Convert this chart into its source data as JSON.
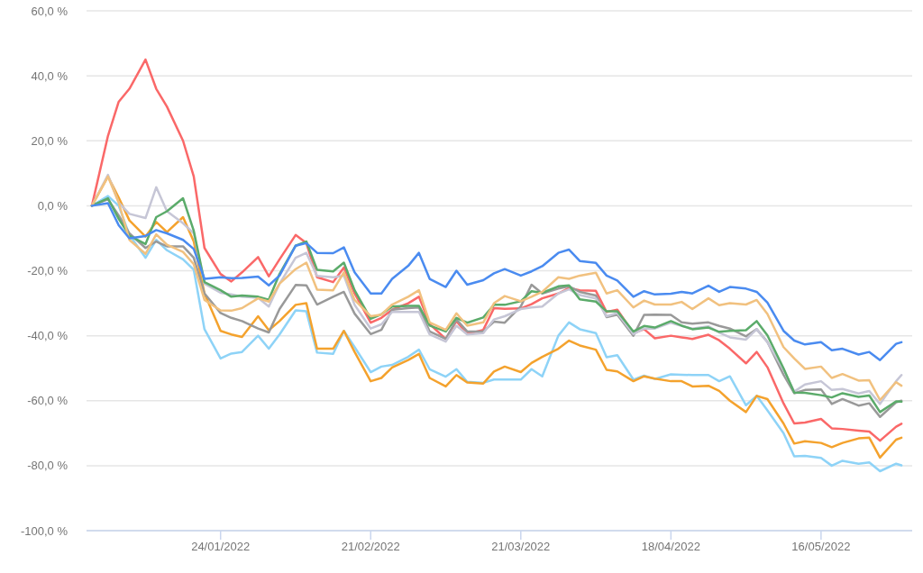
{
  "chart_data": {
    "type": "line",
    "x": [
      "2021-12-31",
      "2022-01-03",
      "2022-01-05",
      "2022-01-07",
      "2022-01-10",
      "2022-01-12",
      "2022-01-14",
      "2022-01-17",
      "2022-01-19",
      "2022-01-21",
      "2022-01-24",
      "2022-01-26",
      "2022-01-28",
      "2022-01-31",
      "2022-02-02",
      "2022-02-04",
      "2022-02-07",
      "2022-02-09",
      "2022-02-11",
      "2022-02-14",
      "2022-02-16",
      "2022-02-18",
      "2022-02-21",
      "2022-02-23",
      "2022-02-25",
      "2022-02-28",
      "2022-03-02",
      "2022-03-04",
      "2022-03-07",
      "2022-03-09",
      "2022-03-11",
      "2022-03-14",
      "2022-03-16",
      "2022-03-18",
      "2022-03-21",
      "2022-03-23",
      "2022-03-25",
      "2022-03-28",
      "2022-03-30",
      "2022-04-01",
      "2022-04-04",
      "2022-04-06",
      "2022-04-08",
      "2022-04-11",
      "2022-04-13",
      "2022-04-15",
      "2022-04-18",
      "2022-04-20",
      "2022-04-22",
      "2022-04-25",
      "2022-04-27",
      "2022-04-29",
      "2022-05-02",
      "2022-05-04",
      "2022-05-06",
      "2022-05-09",
      "2022-05-11",
      "2022-05-13",
      "2022-05-16",
      "2022-05-18",
      "2022-05-20",
      "2022-05-23",
      "2022-05-25",
      "2022-05-27",
      "2022-05-30",
      "2022-05-31"
    ],
    "series": [
      {
        "color": "#8ed3f7",
        "values": [
          0,
          3,
          0,
          -9,
          -16,
          -10.5,
          -13.7,
          -16.5,
          -19.7,
          -38,
          -47,
          -45.5,
          -45,
          -40,
          -44,
          -39.6,
          -32.2,
          -32.5,
          -45.2,
          -45.6,
          -38.5,
          -43.5,
          -51.2,
          -49.5,
          -49,
          -46.5,
          -44.3,
          -50.3,
          -52.6,
          -50.3,
          -54.2,
          -54.5,
          -53.5,
          -53.5,
          -53.5,
          -50.3,
          -52.5,
          -40,
          -35.9,
          -38,
          -39.2,
          -46.6,
          -46,
          -53.5,
          -52.3,
          -53.3,
          -51.9,
          -52,
          -52.1,
          -52.1,
          -54,
          -52.5,
          -61.4,
          -58.5,
          -63,
          -70,
          -77.1,
          -77,
          -77.6,
          -80,
          -78.5,
          -79.4,
          -79,
          -81.7,
          -79.4,
          -79.9
        ]
      },
      {
        "color": "#f4a22d",
        "values": [
          0,
          9,
          2.5,
          -4.5,
          -9.5,
          -5,
          -8.1,
          -3.5,
          -11,
          -27,
          -38.5,
          -39.6,
          -40.4,
          -34,
          -38.3,
          -35.5,
          -30.5,
          -30,
          -44,
          -44,
          -38.5,
          -45,
          -54,
          -53,
          -49.8,
          -47.5,
          -45.6,
          -53,
          -55.6,
          -52.1,
          -54.4,
          -54.7,
          -51,
          -49.5,
          -51.2,
          -48.4,
          -46.5,
          -44,
          -41.5,
          -43,
          -44.3,
          -50.5,
          -51,
          -54,
          -52.5,
          -53.2,
          -54,
          -54,
          -55.6,
          -55.4,
          -57,
          -60,
          -63.5,
          -58.5,
          -59.5,
          -67,
          -73.2,
          -72.5,
          -73,
          -74.3,
          -73,
          -71.6,
          -71.4,
          -77.5,
          -72,
          -71.4
        ]
      },
      {
        "color": "#fa6868",
        "values": [
          0,
          21.5,
          32,
          36,
          45,
          36,
          30.5,
          20,
          9,
          -13,
          -21,
          -23.3,
          -20.5,
          -15.8,
          -21.7,
          -16.5,
          -9,
          -11.5,
          -22,
          -23.5,
          -19,
          -27,
          -36,
          -34.5,
          -32,
          -30,
          -28,
          -36.4,
          -41,
          -35.5,
          -39.5,
          -38.2,
          -31.5,
          -31.7,
          -31.6,
          -30.3,
          -28.5,
          -27,
          -25.3,
          -26,
          -26.2,
          -32.7,
          -32,
          -39.2,
          -38,
          -40.8,
          -40,
          -40.5,
          -41,
          -39.7,
          -41.4,
          -44,
          -48.5,
          -45,
          -49.7,
          -60.8,
          -67,
          -66.7,
          -65.6,
          -68.5,
          -68.7,
          -69.2,
          -69.5,
          -72.3,
          -68,
          -67.1
        ]
      },
      {
        "color": "#999999",
        "values": [
          0,
          2,
          -3,
          -8.5,
          -13,
          -11,
          -12.5,
          -12.5,
          -16,
          -27,
          -33,
          -34.5,
          -35.5,
          -37.8,
          -39,
          -31.8,
          -24.4,
          -24.5,
          -30.4,
          -28,
          -26.5,
          -33.2,
          -39.5,
          -38.2,
          -32,
          -31.5,
          -31.3,
          -38.7,
          -41,
          -35,
          -38.7,
          -38.7,
          -35.7,
          -36,
          -31,
          -24.3,
          -27,
          -25.5,
          -24.8,
          -26.5,
          -27.6,
          -34.3,
          -33.5,
          -40,
          -33.6,
          -33.5,
          -33.6,
          -35.9,
          -36.3,
          -35.9,
          -37,
          -37.8,
          -40.2,
          -38,
          -41.9,
          -52,
          -57.7,
          -56.7,
          -56.5,
          -61,
          -59.5,
          -61.5,
          -60.8,
          -65,
          -60.5,
          -60
        ]
      },
      {
        "color": "#c6c6d6",
        "values": [
          0,
          9.5,
          1,
          -2.5,
          -3.8,
          5.7,
          -1.7,
          -5.4,
          -8.5,
          -24,
          -26.8,
          -27.3,
          -28,
          -28.3,
          -31,
          -24,
          -16,
          -14.5,
          -21.6,
          -22,
          -21.5,
          -30.5,
          -37.8,
          -36.5,
          -32.7,
          -32.7,
          -32.7,
          -39.6,
          -41.8,
          -36.9,
          -39.6,
          -39.2,
          -35,
          -34,
          -31.8,
          -31.3,
          -31,
          -27,
          -25.7,
          -27.5,
          -28.5,
          -34,
          -33,
          -39.5,
          -37.8,
          -37.8,
          -36,
          -37,
          -37.8,
          -37.1,
          -39,
          -40.5,
          -41.2,
          -38,
          -42,
          -50.5,
          -57.2,
          -55,
          -54,
          -56.7,
          -56.4,
          -57.8,
          -57,
          -61,
          -54,
          -52.1
        ]
      },
      {
        "color": "#5bab6a",
        "values": [
          0,
          2.3,
          -4,
          -9.2,
          -11.8,
          -3.5,
          -1.7,
          2.3,
          -7.7,
          -23.5,
          -26,
          -28,
          -27.6,
          -28,
          -28.9,
          -21,
          -12.3,
          -11,
          -19.7,
          -20.2,
          -17.5,
          -26,
          -34.8,
          -33.4,
          -31,
          -30.8,
          -30.8,
          -36.9,
          -38.7,
          -34.5,
          -36,
          -34.4,
          -30.5,
          -30.5,
          -29.4,
          -26.3,
          -26.8,
          -24.8,
          -24.5,
          -28.8,
          -29.5,
          -32.5,
          -32.5,
          -38.7,
          -37,
          -37.5,
          -35.5,
          -36.9,
          -38,
          -37.5,
          -38.8,
          -38.5,
          -38.3,
          -35.5,
          -39.9,
          -50,
          -57.5,
          -57.6,
          -58.3,
          -59,
          -57.7,
          -58.8,
          -58.4,
          -63.5,
          -60.2,
          -60.3
        ]
      },
      {
        "color": "#f1c17f",
        "values": [
          0,
          9,
          1,
          -10.5,
          -14.8,
          -8.8,
          -12,
          -14.2,
          -18,
          -29,
          -32.2,
          -32.3,
          -31.5,
          -28.5,
          -29.5,
          -24,
          -19.5,
          -17.5,
          -25.8,
          -26,
          -20.5,
          -29,
          -34,
          -33.5,
          -30.4,
          -28,
          -26,
          -35.9,
          -38.2,
          -33.1,
          -36.9,
          -35.9,
          -30,
          -27.8,
          -29.4,
          -28,
          -26.5,
          -22,
          -22.5,
          -21.5,
          -20.6,
          -27,
          -26,
          -31.3,
          -29.2,
          -30.4,
          -30.4,
          -29.6,
          -31.8,
          -28.5,
          -30.6,
          -30,
          -30.4,
          -29,
          -33.3,
          -43.5,
          -47,
          -50.2,
          -49.5,
          -53,
          -51.8,
          -53.8,
          -53.7,
          -59.8,
          -54.3,
          -55.4
        ]
      },
      {
        "color": "#4a8bf0",
        "values": [
          0,
          0.8,
          -6,
          -10,
          -9.3,
          -7.5,
          -8.5,
          -10.5,
          -13.3,
          -22.5,
          -22,
          -22.3,
          -22.2,
          -21.8,
          -24.5,
          -21.5,
          -12.3,
          -11.5,
          -14.5,
          -14.6,
          -12.8,
          -20.5,
          -27,
          -27,
          -22.5,
          -18.5,
          -14.5,
          -22.5,
          -25,
          -20,
          -24.3,
          -22.9,
          -20.8,
          -19.5,
          -21.5,
          -20.2,
          -18.6,
          -14.5,
          -13.5,
          -17,
          -17.6,
          -21.5,
          -23,
          -28,
          -26.3,
          -27.3,
          -27.1,
          -26.5,
          -27,
          -24.6,
          -26.5,
          -25,
          -25.5,
          -26.5,
          -29.8,
          -38.5,
          -41.5,
          -42.7,
          -42,
          -44.5,
          -44,
          -45.8,
          -45,
          -47.5,
          -42.5,
          -42
        ]
      }
    ],
    "xlim": [
      "2021-12-30",
      "2022-06-02"
    ],
    "xticks": [
      {
        "value": "2022-01-24",
        "label": "24/01/2022"
      },
      {
        "value": "2022-02-21",
        "label": "21/02/2022"
      },
      {
        "value": "2022-03-21",
        "label": "21/03/2022"
      },
      {
        "value": "2022-04-18",
        "label": "18/04/2022"
      },
      {
        "value": "2022-05-16",
        "label": "16/05/2022"
      }
    ],
    "ylim": [
      -100,
      60
    ],
    "yticks": [
      {
        "value": -100,
        "label": "-100,0 %"
      },
      {
        "value": -80,
        "label": "-80,0 %"
      },
      {
        "value": -60,
        "label": "-60,0 %"
      },
      {
        "value": -40,
        "label": "-40,0 %"
      },
      {
        "value": -20,
        "label": "-20,0 %"
      },
      {
        "value": 0,
        "label": "0,0 %"
      },
      {
        "value": 20,
        "label": "20,0 %"
      },
      {
        "value": 40,
        "label": "40,0 %"
      },
      {
        "value": 60,
        "label": "60,0 %"
      }
    ],
    "grid": "y",
    "marker": "none"
  }
}
